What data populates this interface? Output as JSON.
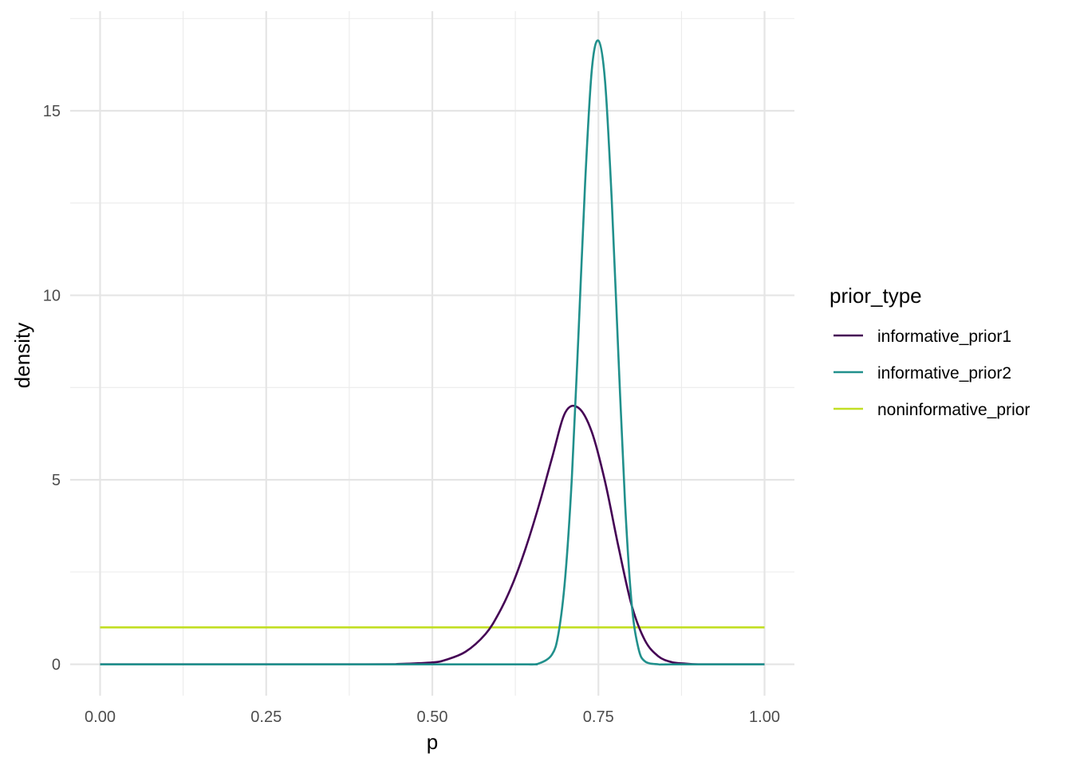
{
  "chart_data": {
    "type": "line",
    "title": "",
    "xlabel": "p",
    "ylabel": "density",
    "xlim": [
      -0.045,
      1.045
    ],
    "ylim": [
      -0.85,
      17.7
    ],
    "x_ticks": [
      0,
      0.25,
      0.5,
      0.75,
      1
    ],
    "x_tick_labels": [
      "0.00",
      "0.25",
      "0.50",
      "0.75",
      "1.00"
    ],
    "y_ticks": [
      0,
      5,
      10,
      15
    ],
    "y_tick_labels": [
      "0",
      "5",
      "10",
      "15"
    ],
    "grid": true,
    "legend": {
      "title": "prior_type",
      "position": "right"
    },
    "series": [
      {
        "name": "informative_prior1",
        "color": "#440154",
        "x": [
          0.0,
          0.4,
          0.45,
          0.5,
          0.52,
          0.55,
          0.58,
          0.6,
          0.62,
          0.64,
          0.66,
          0.68,
          0.7,
          0.72,
          0.74,
          0.76,
          0.78,
          0.8,
          0.82,
          0.84,
          0.86,
          0.88,
          0.9,
          0.95,
          1.0
        ],
        "y": [
          0.0,
          0.0,
          0.01,
          0.05,
          0.12,
          0.34,
          0.82,
          1.38,
          2.14,
          3.12,
          4.28,
          5.58,
          6.82,
          6.95,
          6.3,
          4.95,
          3.2,
          1.6,
          0.65,
          0.22,
          0.06,
          0.02,
          0.0,
          0.0,
          0.0
        ]
      },
      {
        "name": "informative_prior2",
        "color": "#21908C",
        "x": [
          0.0,
          0.6,
          0.64,
          0.66,
          0.68,
          0.69,
          0.7,
          0.71,
          0.72,
          0.73,
          0.74,
          0.75,
          0.76,
          0.77,
          0.78,
          0.79,
          0.8,
          0.81,
          0.82,
          0.84,
          0.86,
          1.0
        ],
        "y": [
          0.0,
          0.0,
          0.0,
          0.02,
          0.26,
          0.85,
          2.35,
          5.05,
          8.95,
          13.05,
          16.1,
          16.9,
          15.8,
          12.6,
          8.4,
          4.4,
          1.65,
          0.45,
          0.08,
          0.0,
          0.0,
          0.0
        ]
      },
      {
        "name": "noninformative_prior",
        "color": "#C2DF23",
        "x": [
          0.0,
          1.0
        ],
        "y": [
          1.0,
          1.0
        ]
      }
    ]
  }
}
